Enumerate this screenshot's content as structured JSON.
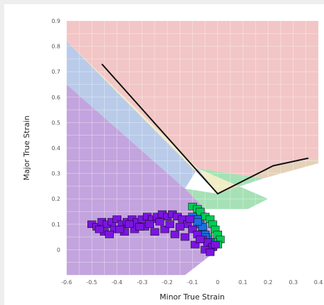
{
  "chart_data": {
    "type": "scatter",
    "title": "",
    "xlabel": "Minor True Strain",
    "ylabel": "Major True Strain",
    "xlim": [
      -0.6,
      0.4
    ],
    "ylim": [
      -0.1,
      0.9
    ],
    "x_ticks": [
      "-0.6",
      "-0.5",
      "-0.4",
      "-0.3",
      "-0.2",
      "-0.1",
      "0",
      "0.1",
      "0.2",
      "0.3",
      "0.4"
    ],
    "y_ticks": [
      "0",
      "0.1",
      "0.2",
      "0.3",
      "0.4",
      "0.5",
      "0.6",
      "0.7",
      "0.8",
      "0.9"
    ],
    "grid": true,
    "zones": [
      {
        "color": "#f2c6c6",
        "polygon": [
          [
            -0.6,
            0.9
          ],
          [
            0.4,
            0.9
          ],
          [
            0.4,
            0.36
          ],
          [
            0.19,
            0.32
          ],
          [
            0.0,
            0.22
          ],
          [
            -0.6,
            0.82
          ]
        ]
      },
      {
        "color": "#f0ecc4",
        "polygon": [
          [
            -0.6,
            0.82
          ],
          [
            -0.08,
            0.32
          ],
          [
            0.18,
            0.28
          ],
          [
            0.0,
            0.22
          ]
        ]
      },
      {
        "color": "#e4d1b9",
        "polygon": [
          [
            0.4,
            0.36
          ],
          [
            0.19,
            0.32
          ],
          [
            0.0,
            0.22
          ],
          [
            0.18,
            0.28
          ],
          [
            0.4,
            0.34
          ]
        ]
      },
      {
        "color": "#b9cbe9",
        "polygon": [
          [
            -0.6,
            0.82
          ],
          [
            -0.6,
            0.65
          ],
          [
            -0.13,
            0.24
          ],
          [
            -0.08,
            0.32
          ],
          [
            0.0,
            0.22
          ]
        ]
      },
      {
        "color": "#a6e1b6",
        "polygon": [
          [
            -0.08,
            0.32
          ],
          [
            0.18,
            0.28
          ],
          [
            0.0,
            0.22
          ],
          [
            -0.13,
            0.24
          ],
          [
            -0.05,
            0.16
          ],
          [
            0.12,
            0.16
          ],
          [
            0.2,
            0.2
          ]
        ]
      },
      {
        "color": "#c3a4de",
        "polygon": [
          [
            -0.6,
            0.65
          ],
          [
            -0.6,
            -0.1
          ],
          [
            -0.13,
            -0.1
          ],
          [
            0.0,
            0.0
          ],
          [
            -0.05,
            0.16
          ],
          [
            -0.13,
            0.24
          ]
        ]
      }
    ],
    "flc_curve": {
      "x": [
        -0.46,
        0.0,
        0.22,
        0.36
      ],
      "y": [
        0.73,
        0.22,
        0.33,
        0.36
      ]
    },
    "series": [
      {
        "color": "#00cc55",
        "x": [
          -0.1,
          -0.08,
          -0.07,
          -0.05,
          -0.03,
          -0.02,
          -0.01,
          0.0,
          0.01,
          0.0,
          -0.02,
          -0.04,
          -0.06,
          -0.08
        ],
        "y": [
          0.17,
          0.16,
          0.15,
          0.13,
          0.12,
          0.1,
          0.08,
          0.06,
          0.04,
          0.02,
          0.03,
          0.05,
          0.07,
          0.1
        ]
      },
      {
        "color": "#1a70e0",
        "x": [
          -0.1,
          -0.08,
          -0.07,
          -0.06,
          -0.05,
          -0.04,
          -0.03,
          -0.05,
          -0.06,
          -0.08
        ],
        "y": [
          0.13,
          0.12,
          0.1,
          0.08,
          0.06,
          0.04,
          0.03,
          0.05,
          0.09,
          0.11
        ]
      },
      {
        "color": "#7a15e0",
        "x": [
          -0.5,
          -0.48,
          -0.46,
          -0.44,
          -0.42,
          -0.4,
          -0.38,
          -0.36,
          -0.34,
          -0.32,
          -0.3,
          -0.28,
          -0.26,
          -0.24,
          -0.22,
          -0.2,
          -0.18,
          -0.16,
          -0.14,
          -0.12,
          -0.1,
          -0.08,
          -0.06,
          -0.04,
          -0.02,
          -0.01,
          -0.45,
          -0.41,
          -0.37,
          -0.33,
          -0.29,
          -0.25,
          -0.21,
          -0.17,
          -0.13,
          -0.09,
          -0.05,
          -0.03,
          -0.47,
          -0.43,
          -0.39,
          -0.35,
          -0.31,
          -0.27,
          -0.23,
          -0.19,
          -0.15,
          -0.11,
          -0.07
        ],
        "y": [
          0.1,
          0.09,
          0.11,
          0.1,
          0.11,
          0.12,
          0.1,
          0.11,
          0.12,
          0.11,
          0.12,
          0.13,
          0.12,
          0.13,
          0.14,
          0.13,
          0.14,
          0.13,
          0.12,
          0.1,
          0.08,
          0.06,
          0.04,
          0.03,
          0.01,
          0.02,
          0.07,
          0.08,
          0.07,
          0.08,
          0.09,
          0.07,
          0.08,
          0.06,
          0.05,
          0.02,
          0.0,
          -0.01,
          0.08,
          0.06,
          0.08,
          0.1,
          0.09,
          0.1,
          0.11,
          0.1,
          0.09,
          0.12,
          0.04
        ]
      }
    ]
  }
}
